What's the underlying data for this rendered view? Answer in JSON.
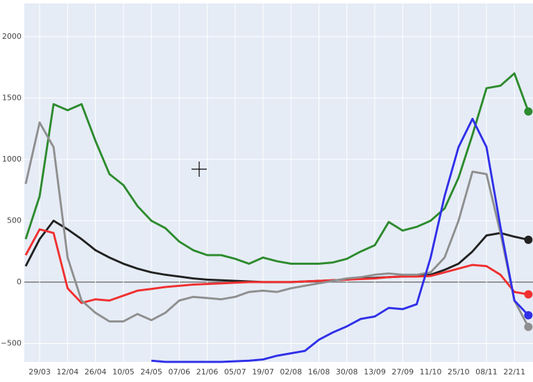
{
  "chart_data": {
    "type": "line",
    "categories": [
      null,
      "29/03",
      null,
      "12/04",
      null,
      "26/04",
      null,
      "10/05",
      null,
      "24/05",
      null,
      "07/06",
      null,
      "21/06",
      null,
      "05/07",
      null,
      "19/07",
      null,
      "02/08",
      null,
      "16/08",
      null,
      "30/08",
      null,
      "13/09",
      null,
      "27/09",
      null,
      "11/10",
      null,
      "25/10",
      null,
      "08/11",
      null,
      "22/11",
      null
    ],
    "series": [
      {
        "name": "green",
        "color": "#2e8b2e",
        "values": [
          350,
          700,
          1450,
          1400,
          1450,
          1150,
          880,
          790,
          620,
          500,
          440,
          330,
          260,
          220,
          220,
          190,
          150,
          200,
          170,
          150,
          150,
          150,
          160,
          190,
          250,
          300,
          490,
          420,
          450,
          500,
          600,
          850,
          1200,
          1580,
          1600,
          1700,
          1390
        ]
      },
      {
        "name": "black",
        "color": "#222222",
        "values": [
          130,
          350,
          500,
          430,
          350,
          260,
          200,
          150,
          110,
          80,
          60,
          45,
          30,
          20,
          15,
          10,
          5,
          0,
          0,
          0,
          5,
          10,
          15,
          20,
          30,
          35,
          40,
          45,
          50,
          60,
          100,
          150,
          250,
          380,
          400,
          370,
          345
        ]
      },
      {
        "name": "red",
        "color": "#f03030",
        "values": [
          220,
          430,
          400,
          -50,
          -170,
          -140,
          -150,
          -110,
          -70,
          -55,
          -40,
          -30,
          -20,
          -15,
          -10,
          -5,
          0,
          0,
          0,
          0,
          5,
          10,
          15,
          20,
          25,
          30,
          40,
          45,
          45,
          50,
          80,
          110,
          140,
          130,
          60,
          -80,
          -100
        ]
      },
      {
        "name": "gray",
        "color": "#8f8f8f",
        "values": [
          800,
          1300,
          1100,
          200,
          -150,
          -250,
          -320,
          -320,
          -260,
          -310,
          -250,
          -150,
          -120,
          -130,
          -140,
          -120,
          -80,
          -70,
          -80,
          -50,
          -30,
          -10,
          10,
          30,
          40,
          60,
          70,
          60,
          60,
          80,
          200,
          500,
          900,
          880,
          400,
          -150,
          -365
        ]
      },
      {
        "name": "blue",
        "color": "#3030e8",
        "values": [
          null,
          null,
          null,
          null,
          null,
          null,
          null,
          null,
          null,
          -640,
          -650,
          -650,
          -650,
          -650,
          -650,
          -645,
          -640,
          -630,
          -600,
          -580,
          -560,
          -470,
          -410,
          -360,
          -300,
          -280,
          -210,
          -220,
          -180,
          200,
          700,
          1100,
          1330,
          1100,
          450,
          -150,
          -270
        ]
      }
    ],
    "ylim": [
      -650,
      2270
    ],
    "yticks": [
      {
        "value": -500,
        "label": "−500"
      },
      0,
      500,
      1000,
      1500,
      2000
    ],
    "grid": true
  }
}
